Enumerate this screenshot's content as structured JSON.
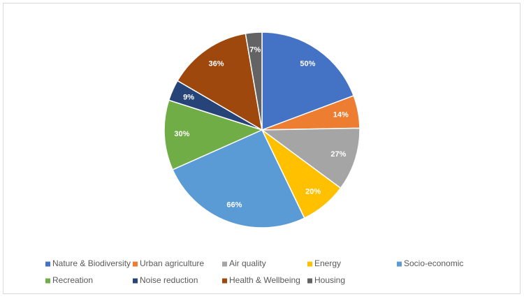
{
  "chart_data": {
    "type": "pie",
    "categories": [
      "Nature & Biodiversity",
      "Urban agriculture",
      "Air quality",
      "Energy",
      "Socio-economic",
      "Recreation",
      "Noise reduction",
      "Health & Wellbeing",
      "Housing"
    ],
    "values": [
      50,
      14,
      27,
      20,
      66,
      30,
      9,
      36,
      7
    ],
    "value_labels": [
      "50%",
      "14%",
      "27%",
      "20%",
      "66%",
      "30%",
      "9%",
      "36%",
      "7%"
    ],
    "colors": [
      "#4472c4",
      "#ed7d31",
      "#a5a5a5",
      "#ffc000",
      "#5b9bd5",
      "#70ad47",
      "#264478",
      "#9e480e",
      "#636363"
    ],
    "legend": "bottom"
  }
}
